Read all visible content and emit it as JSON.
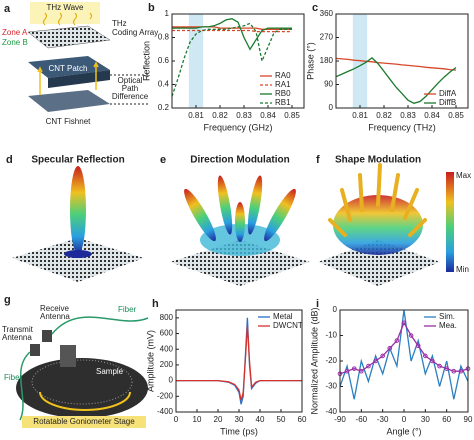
{
  "chart_data": [
    {
      "type": "line",
      "label": "b",
      "xlabel": "Frequency (GHz)",
      "ylabel": "Reflection",
      "x": [
        0.8,
        0.8025,
        0.805,
        0.8075,
        0.81,
        0.8125,
        0.815,
        0.8175,
        0.82,
        0.8225,
        0.825,
        0.8275,
        0.83,
        0.8325,
        0.835,
        0.8375,
        0.84,
        0.8425,
        0.845,
        0.8475,
        0.85
      ],
      "xlim": [
        0.8,
        0.855
      ],
      "xticks": [
        0.81,
        0.82,
        0.83,
        0.84,
        0.85
      ],
      "ylim": [
        0.2,
        1.0
      ],
      "yticks": [
        0.2,
        0.4,
        0.6,
        0.8,
        1
      ],
      "highlight": [
        0.807,
        0.813
      ],
      "legend": "lower right",
      "series": [
        {
          "name": "RA0",
          "color": "#d9472b",
          "dash": false,
          "values": [
            0.89,
            0.89,
            0.89,
            0.89,
            0.89,
            0.89,
            0.89,
            0.89,
            0.88,
            0.88,
            0.88,
            0.88,
            0.88,
            0.88,
            0.88,
            0.87,
            0.87,
            0.87,
            0.87,
            0.87,
            0.87
          ]
        },
        {
          "name": "RA1",
          "color": "#d9472b",
          "dash": true,
          "values": [
            0.86,
            0.86,
            0.86,
            0.86,
            0.86,
            0.86,
            0.86,
            0.86,
            0.86,
            0.86,
            0.86,
            0.86,
            0.86,
            0.86,
            0.85,
            0.85,
            0.85,
            0.85,
            0.85,
            0.85,
            0.85
          ]
        },
        {
          "name": "RB0",
          "color": "#1a7a2e",
          "dash": false,
          "values": [
            0.88,
            0.88,
            0.88,
            0.88,
            0.88,
            0.89,
            0.89,
            0.9,
            0.92,
            0.95,
            0.96,
            0.93,
            0.8,
            0.7,
            0.78,
            0.86,
            0.88,
            0.88,
            0.88,
            0.88,
            0.88
          ]
        },
        {
          "name": "RB1",
          "color": "#1a7a2e",
          "dash": true,
          "values": [
            0.3,
            0.45,
            0.62,
            0.76,
            0.83,
            0.86,
            0.87,
            0.87,
            0.87,
            0.87,
            0.88,
            0.89,
            0.9,
            0.92,
            0.85,
            0.6,
            0.72,
            0.84,
            0.87,
            0.87,
            0.87
          ]
        }
      ]
    },
    {
      "type": "line",
      "label": "c",
      "xlabel": "Frequency (THz)",
      "ylabel": "Phase (°)",
      "x": [
        0.8,
        0.8025,
        0.805,
        0.8075,
        0.81,
        0.8125,
        0.815,
        0.8175,
        0.82,
        0.8225,
        0.825,
        0.8275,
        0.83,
        0.8325,
        0.835,
        0.8375,
        0.84,
        0.8425,
        0.845,
        0.8475,
        0.85
      ],
      "xlim": [
        0.8,
        0.855
      ],
      "xticks": [
        0.81,
        0.82,
        0.83,
        0.84,
        0.85
      ],
      "ylim": [
        0,
        360
      ],
      "yticks": [
        0,
        90,
        180,
        270,
        360
      ],
      "highlight": [
        0.807,
        0.813
      ],
      "legend": "lower right",
      "series": [
        {
          "name": "DiffA",
          "color": "#d9472b",
          "dash": false,
          "values": [
            190,
            188,
            186,
            183,
            181,
            179,
            177,
            174,
            172,
            170,
            168,
            165,
            163,
            161,
            159,
            156,
            154,
            152,
            150,
            147,
            145
          ]
        },
        {
          "name": "DiffB",
          "color": "#1a7a2e",
          "dash": false,
          "values": [
            120,
            130,
            140,
            150,
            162,
            175,
            192,
            170,
            140,
            110,
            80,
            55,
            30,
            18,
            25,
            45,
            70,
            95,
            118,
            138,
            155
          ]
        }
      ]
    },
    {
      "type": "line",
      "label": "h",
      "xlabel": "Time (ps)",
      "ylabel": "Amplitude (mV)",
      "x": [
        0,
        10,
        20,
        25,
        28,
        30,
        31,
        32,
        33,
        34,
        35,
        36,
        38,
        40,
        50,
        60
      ],
      "xlim": [
        0,
        60
      ],
      "xticks": [
        0,
        10,
        20,
        30,
        40,
        50,
        60
      ],
      "ylim": [
        -400,
        900
      ],
      "yticks": [
        -400,
        -200,
        0,
        200,
        400,
        600,
        800
      ],
      "legend": "upper right",
      "series": [
        {
          "name": "Metal",
          "color": "#2a6fc9",
          "dash": false,
          "values": [
            0,
            0,
            0,
            -20,
            -60,
            -150,
            -300,
            -200,
            300,
            800,
            200,
            -100,
            -30,
            0,
            0,
            0
          ]
        },
        {
          "name": "DWCNT",
          "color": "#d6322b",
          "dash": false,
          "values": [
            0,
            0,
            0,
            -15,
            -50,
            -120,
            -250,
            -150,
            250,
            700,
            250,
            -80,
            -20,
            0,
            0,
            0
          ]
        }
      ]
    },
    {
      "type": "line",
      "label": "i",
      "xlabel": "Angle (°)",
      "ylabel": "Normalized Amplitude (dB)",
      "x": [
        -90,
        -80,
        -70,
        -60,
        -50,
        -40,
        -30,
        -20,
        -10,
        0,
        10,
        20,
        30,
        40,
        50,
        60,
        70,
        80,
        90
      ],
      "xlim": [
        -90,
        90
      ],
      "xticks": [
        -90,
        -60,
        -30,
        0,
        30,
        60,
        90
      ],
      "ylim": [
        -40,
        0
      ],
      "yticks": [
        -40,
        -30,
        -20,
        -10,
        0
      ],
      "legend": "upper right",
      "series": [
        {
          "name": "Sim.",
          "color": "#2a7fc0",
          "dash": false,
          "marker": false,
          "values": [
            -30,
            -22,
            -35,
            -20,
            -28,
            -18,
            -25,
            -15,
            -22,
            0,
            -20,
            -12,
            -25,
            -18,
            -30,
            -20,
            -35,
            -22,
            -28
          ]
        },
        {
          "name": "Mea.",
          "color": "#9b2fa8",
          "dash": false,
          "marker": true,
          "values": [
            -25,
            -24,
            -23,
            -24,
            -22,
            -20,
            -18,
            -15,
            -12,
            -5,
            -10,
            -14,
            -18,
            -20,
            -22,
            -23,
            -24,
            -24,
            -23
          ]
        }
      ]
    }
  ],
  "panel_a": {
    "label": "a",
    "wave": "THz Wave",
    "array": [
      "THz",
      "Coding Array"
    ],
    "zone_a": "Zone A",
    "zone_b": "Zone B",
    "patch": "CNT Patch",
    "opd": [
      "Optical",
      "Path",
      "Difference"
    ],
    "fishnet": "CNT Fishnet"
  },
  "panel_d": {
    "label": "d",
    "title": "Specular Reflection"
  },
  "panel_e": {
    "label": "e",
    "title": "Direction Modulation"
  },
  "panel_f": {
    "label": "f",
    "title": "Shape Modulation",
    "max": "Max",
    "min": "Min"
  },
  "panel_g": {
    "label": "g",
    "receive": [
      "Receive",
      "Antenna"
    ],
    "transmit": [
      "Transmit",
      "Antenna"
    ],
    "fiber_top": "Fiber",
    "fiber_left": "Fiber",
    "sample": "Sample",
    "stage": "Rotatable Goniometer Stage"
  }
}
